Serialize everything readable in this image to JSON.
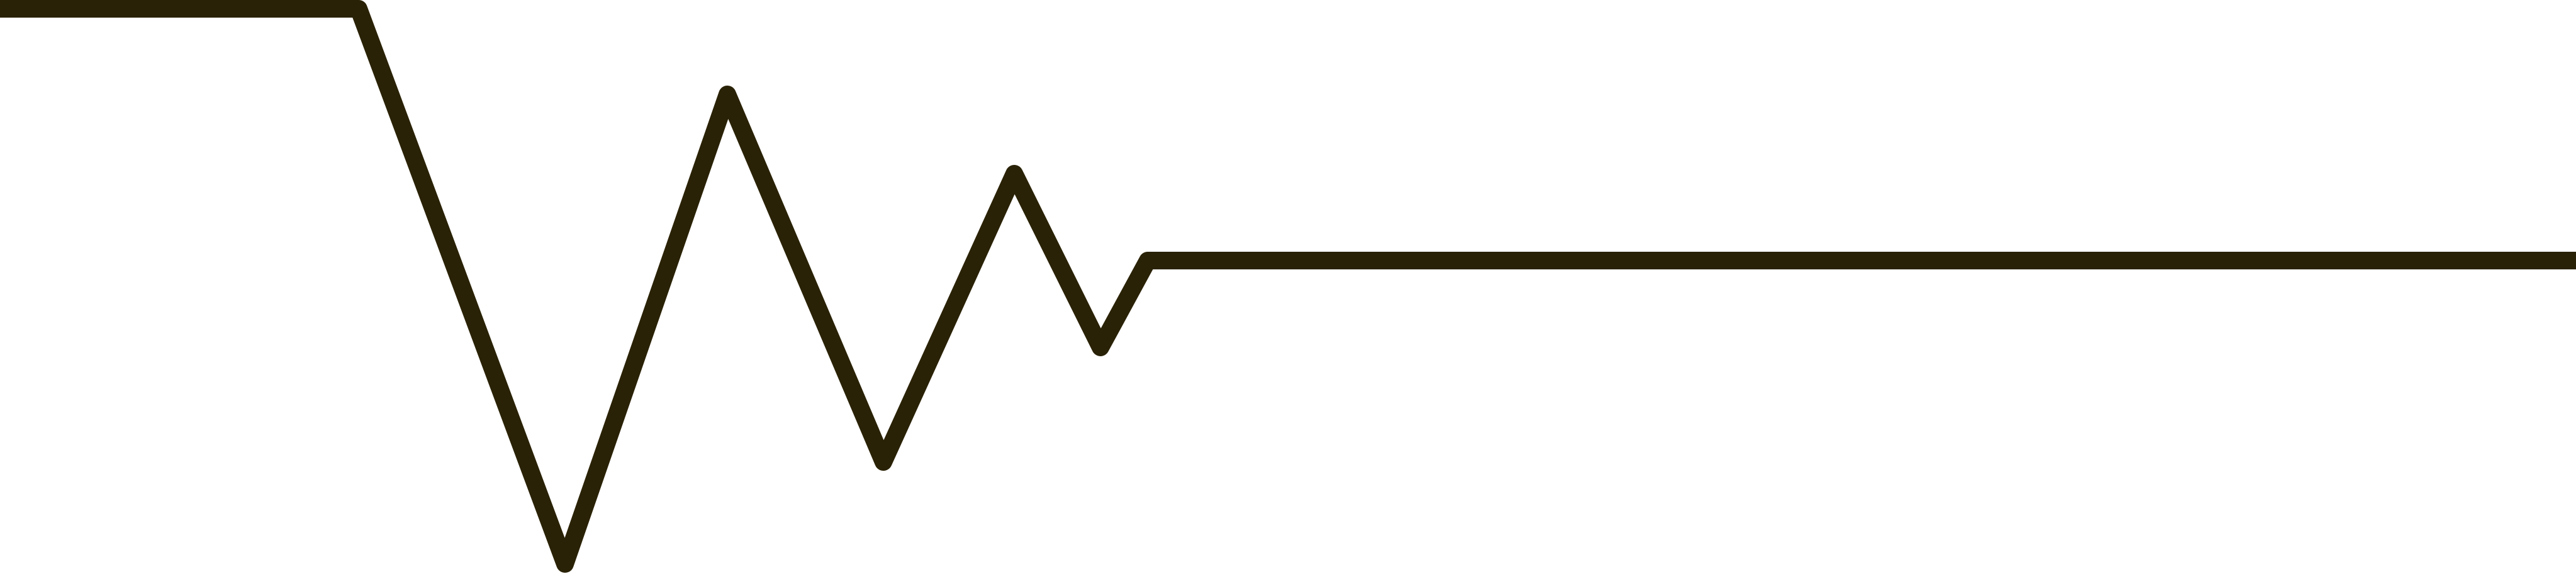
{
  "graphic": {
    "name": "damped-oscillation-line",
    "stroke_color": "#2a2206",
    "background_color": "#ffffff"
  }
}
